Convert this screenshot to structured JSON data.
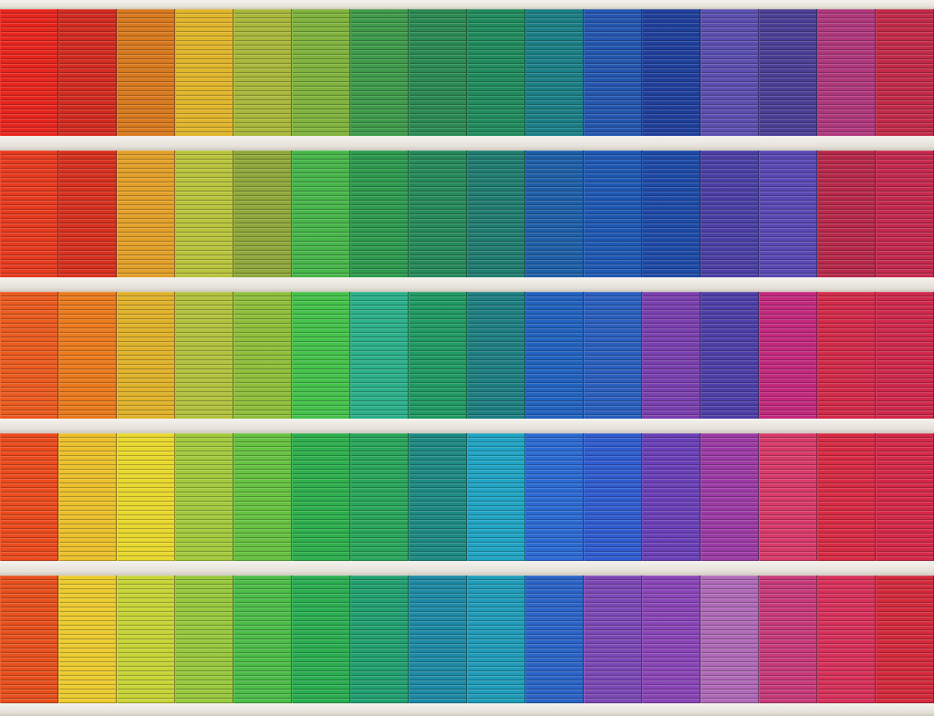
{
  "image": {
    "subject": "colorful-building-facade",
    "ledge_color": "#ebe8e2",
    "bands": [
      [
        "#e8241c",
        "#d42a1f",
        "#d9791d",
        "#e0b52a",
        "#a9b83a",
        "#7fb33c",
        "#3d9a49",
        "#2a8a52",
        "#1f8b5c",
        "#1a7f86",
        "#2356b0",
        "#1f3f9c",
        "#5a4fb0",
        "#4a3e96",
        "#b0377c",
        "#c22a48"
      ],
      [
        "#e83a1e",
        "#d8301e",
        "#e3a028",
        "#b9c43c",
        "#8fa83a",
        "#46b649",
        "#2c9a4e",
        "#258a5a",
        "#1f7d70",
        "#1d5fa8",
        "#1e58b4",
        "#1d4aa8",
        "#4b3fa6",
        "#5948b4",
        "#b8284a",
        "#c4284e"
      ],
      [
        "#ec5a1e",
        "#ec7a1c",
        "#e0b229",
        "#b3c23d",
        "#8fbf3a",
        "#44c24a",
        "#2bb08a",
        "#1f9a63",
        "#1d7f82",
        "#2162c0",
        "#2a5fc0",
        "#7a3fb0",
        "#4d3ea8",
        "#c4287e",
        "#d42a4a",
        "#d0284c"
      ],
      [
        "#ec4a1c",
        "#ecc02a",
        "#e8d82c",
        "#a2cb3c",
        "#66c240",
        "#2caf4c",
        "#28a65a",
        "#1c8a82",
        "#1fa4c4",
        "#2a6ad4",
        "#2f5cd0",
        "#6a3fb8",
        "#9c3aa6",
        "#d83a6a",
        "#d82a44",
        "#d42848"
      ],
      [
        "#e8501c",
        "#eccb2e",
        "#c8d436",
        "#98c83c",
        "#4cbd48",
        "#29ae50",
        "#21a070",
        "#1d8aa6",
        "#1f9cba",
        "#2a64c8",
        "#7b48b6",
        "#8a45b8",
        "#b06ab8",
        "#c83a7a",
        "#d8305a",
        "#d42a3c"
      ]
    ]
  }
}
